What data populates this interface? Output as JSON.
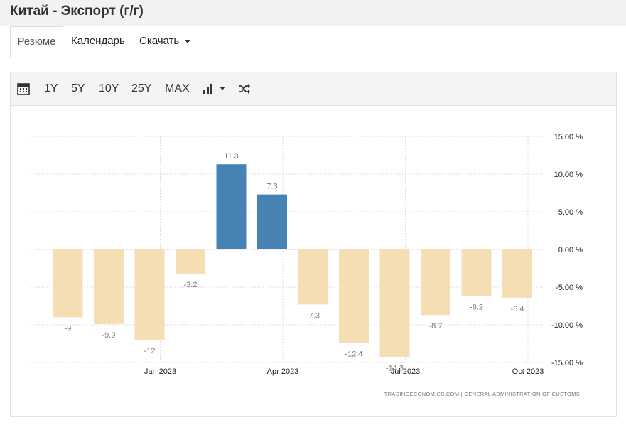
{
  "page": {
    "title": "Китай - Экспорт (г/г)"
  },
  "tabs": [
    {
      "label": "Резюме",
      "active": true
    },
    {
      "label": "Календарь",
      "active": false
    },
    {
      "label": "Скачать",
      "active": false,
      "dropdown": true
    }
  ],
  "toolbar": {
    "calendar_icon": "calendar-icon",
    "ranges": [
      "1Y",
      "5Y",
      "10Y",
      "25Y",
      "MAX"
    ],
    "chart_type_icon": "bar-chart-icon",
    "shuffle_icon": "shuffle-icon"
  },
  "colors": {
    "positive": "#4682b4",
    "negative": "#f5deb3"
  },
  "chart_data": {
    "type": "bar",
    "values": [
      -9,
      -9.9,
      -12,
      -3.2,
      11.3,
      7.3,
      -7.3,
      -12.4,
      -14.3,
      -8.7,
      -6.2,
      -6.4
    ],
    "value_labels": [
      "-9",
      "-9.9",
      "-12",
      "-3.2",
      "11.3",
      "7.3",
      "-7.3",
      "-12.4",
      "-14.3",
      "-8.7",
      "-6.2",
      "-6.4"
    ],
    "x_tick_labels": [
      "Jan 2023",
      "Apr 2023",
      "Jul 2023",
      "Oct 2023"
    ],
    "x_tick_positions": [
      2,
      5,
      8,
      11
    ],
    "y_ticks": [
      15,
      10,
      5,
      0,
      -5,
      -10,
      -15
    ],
    "y_tick_labels": [
      "15.00 %",
      "10.00 %",
      "5.00 %",
      "0.00 %",
      "-5.00 %",
      "-10.00 %",
      "-15.00 %"
    ],
    "ylim": [
      -15,
      15
    ],
    "y_axis_side": "right",
    "grid": true,
    "source": "TRADINGECONOMICS.COM  |  GENERAL ADMINISTRATION OF CUSTOMS"
  }
}
